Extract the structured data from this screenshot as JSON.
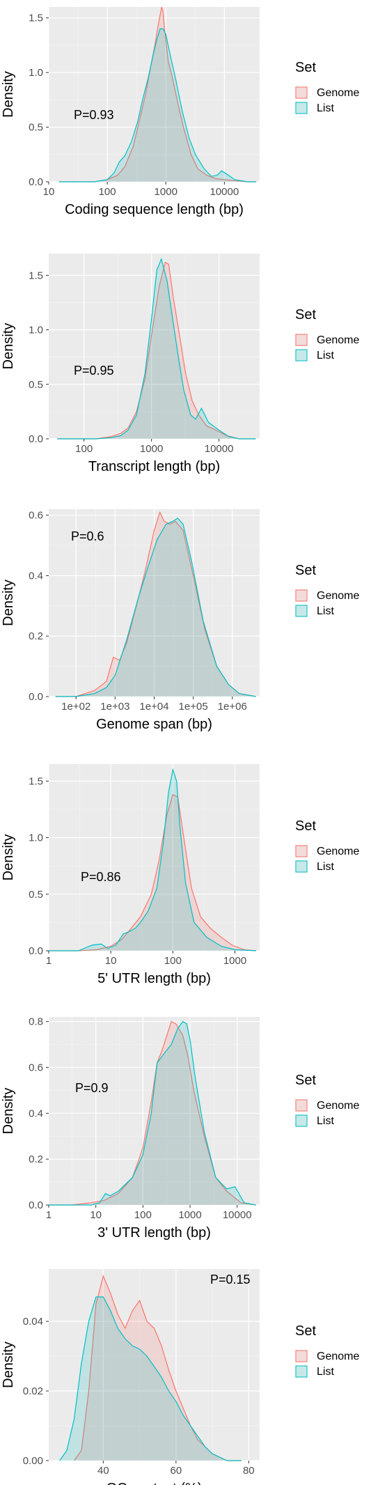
{
  "chart_data": [
    {
      "type": "area",
      "subtype": "density",
      "xlabel": "Coding sequence length (bp)",
      "ylabel": "Density",
      "x_scale": "log10",
      "xlim": [
        10,
        40000
      ],
      "ylim": [
        0,
        1.6
      ],
      "x_ticks": [
        10,
        100,
        1000,
        10000
      ],
      "x_tick_labels": [
        "10",
        "100",
        "1000",
        "10000"
      ],
      "y_ticks": [
        0,
        0.5,
        1,
        1.5
      ],
      "y_tick_labels": [
        "0.0",
        "0.5",
        "1.0",
        "1.5"
      ],
      "annotation": "P=0.93",
      "legend_title": "Set",
      "legend_position": "right",
      "grid": true,
      "series": [
        {
          "name": "Genome",
          "color": "#F8766D",
          "fill": "#F8766D",
          "x": [
            15,
            60,
            100,
            150,
            200,
            280,
            350,
            450,
            550,
            650,
            750,
            850,
            900,
            950,
            1000,
            1100,
            1300,
            1600,
            2000,
            2700,
            3500,
            5000,
            7000,
            10000,
            15000,
            25000,
            35000
          ],
          "y": [
            0,
            0.0,
            0.02,
            0.06,
            0.14,
            0.33,
            0.55,
            0.8,
            1.05,
            1.25,
            1.45,
            1.6,
            1.55,
            1.4,
            1.3,
            1.1,
            0.95,
            0.72,
            0.5,
            0.25,
            0.12,
            0.06,
            0.03,
            0.02,
            0.01,
            0.0,
            0
          ]
        },
        {
          "name": "List",
          "color": "#00BFC4",
          "fill": "#00BFC4",
          "x": [
            15,
            60,
            100,
            130,
            160,
            200,
            260,
            330,
            400,
            500,
            600,
            700,
            800,
            900,
            1000,
            1200,
            1500,
            1900,
            2500,
            3200,
            4500,
            6000,
            7500,
            9000,
            11000,
            15000,
            25000,
            35000
          ],
          "y": [
            0,
            0.0,
            0.02,
            0.08,
            0.18,
            0.24,
            0.37,
            0.55,
            0.75,
            0.95,
            1.15,
            1.3,
            1.4,
            1.4,
            1.35,
            1.15,
            0.92,
            0.65,
            0.4,
            0.25,
            0.12,
            0.05,
            0.06,
            0.1,
            0.07,
            0.02,
            0.0,
            0
          ]
        }
      ]
    },
    {
      "type": "area",
      "subtype": "density",
      "xlabel": "Transcript length (bp)",
      "ylabel": "Density",
      "x_scale": "log10",
      "xlim": [
        30,
        40000
      ],
      "ylim": [
        0,
        1.7
      ],
      "x_ticks": [
        100,
        1000,
        10000
      ],
      "x_tick_labels": [
        "100",
        "1000",
        "10000"
      ],
      "y_ticks": [
        0,
        0.5,
        1,
        1.5
      ],
      "y_tick_labels": [
        "0.0",
        "0.5",
        "1.0",
        "1.5"
      ],
      "annotation": "P=0.95",
      "legend_title": "Set",
      "legend_position": "right",
      "grid": true,
      "series": [
        {
          "name": "Genome",
          "color": "#F8766D",
          "fill": "#F8766D",
          "x": [
            40,
            150,
            250,
            350,
            450,
            600,
            800,
            1000,
            1300,
            1600,
            1800,
            2100,
            2600,
            3200,
            4000,
            5000,
            6500,
            9000,
            13000,
            20000,
            35000
          ],
          "y": [
            0,
            0.0,
            0.02,
            0.05,
            0.1,
            0.25,
            0.55,
            0.95,
            1.4,
            1.62,
            1.6,
            1.3,
            0.95,
            0.6,
            0.35,
            0.22,
            0.12,
            0.08,
            0.03,
            0.0,
            0
          ]
        },
        {
          "name": "List",
          "color": "#00BFC4",
          "fill": "#00BFC4",
          "x": [
            40,
            150,
            250,
            350,
            450,
            600,
            800,
            1000,
            1200,
            1400,
            1700,
            2000,
            2500,
            3000,
            3800,
            4500,
            5500,
            7000,
            10000,
            14000,
            20000,
            35000
          ],
          "y": [
            0,
            0.0,
            0.01,
            0.03,
            0.08,
            0.22,
            0.6,
            1.1,
            1.55,
            1.65,
            1.45,
            1.15,
            0.75,
            0.45,
            0.22,
            0.18,
            0.28,
            0.15,
            0.08,
            0.02,
            0.0,
            0
          ]
        }
      ]
    },
    {
      "type": "area",
      "subtype": "density",
      "xlabel": "Genome span (bp)",
      "ylabel": "Density",
      "x_scale": "log10",
      "xlim": [
        20,
        5000000
      ],
      "ylim": [
        0,
        0.62
      ],
      "x_ticks": [
        100,
        1000,
        10000,
        100000,
        1000000
      ],
      "x_tick_labels": [
        "1e+02",
        "1e+03",
        "1e+04",
        "1e+05",
        "1e+06"
      ],
      "y_ticks": [
        0,
        0.2,
        0.4,
        0.6
      ],
      "y_tick_labels": [
        "0.0",
        "0.2",
        "0.4",
        "0.6"
      ],
      "annotation": "P=0.6",
      "legend_title": "Set",
      "legend_position": "right",
      "grid": true,
      "series": [
        {
          "name": "Genome",
          "color": "#F8766D",
          "fill": "#F8766D",
          "x": [
            30,
            100,
            300,
            600,
            900,
            1300,
            2000,
            3500,
            6000,
            10000,
            14000,
            18000,
            25000,
            35000,
            55000,
            100000,
            200000,
            400000,
            800000,
            1500000,
            4000000
          ],
          "y": [
            0,
            0.0,
            0.02,
            0.05,
            0.13,
            0.12,
            0.18,
            0.3,
            0.42,
            0.55,
            0.61,
            0.58,
            0.57,
            0.58,
            0.55,
            0.4,
            0.22,
            0.1,
            0.04,
            0.01,
            0
          ]
        },
        {
          "name": "List",
          "color": "#00BFC4",
          "fill": "#00BFC4",
          "x": [
            30,
            100,
            300,
            600,
            1000,
            2000,
            4000,
            7000,
            12000,
            20000,
            30000,
            40000,
            55000,
            90000,
            180000,
            400000,
            800000,
            1500000,
            4000000
          ],
          "y": [
            0,
            0.0,
            0.01,
            0.03,
            0.07,
            0.19,
            0.33,
            0.43,
            0.52,
            0.57,
            0.58,
            0.59,
            0.57,
            0.45,
            0.25,
            0.1,
            0.04,
            0.01,
            0
          ]
        }
      ]
    },
    {
      "type": "area",
      "subtype": "density",
      "xlabel": "5' UTR length (bp)",
      "ylabel": "Density",
      "x_scale": "log10",
      "xlim": [
        1,
        2500
      ],
      "ylim": [
        0,
        1.65
      ],
      "x_ticks": [
        1,
        10,
        100,
        1000
      ],
      "x_tick_labels": [
        "1",
        "10",
        "100",
        "1000"
      ],
      "y_ticks": [
        0,
        0.5,
        1,
        1.5
      ],
      "y_tick_labels": [
        "0.0",
        "0.5",
        "1.0",
        "1.5"
      ],
      "annotation": "P=0.86",
      "legend_title": "Set",
      "legend_position": "right",
      "grid": true,
      "series": [
        {
          "name": "Genome",
          "color": "#F8766D",
          "fill": "#F8766D",
          "x": [
            1,
            3,
            6,
            10,
            15,
            20,
            30,
            45,
            60,
            80,
            100,
            120,
            150,
            200,
            280,
            400,
            600,
            900,
            1400,
            2200
          ],
          "y": [
            0,
            0.0,
            0.01,
            0.04,
            0.1,
            0.18,
            0.3,
            0.5,
            0.8,
            1.2,
            1.38,
            1.36,
            1.0,
            0.55,
            0.3,
            0.2,
            0.12,
            0.05,
            0.01,
            0
          ]
        },
        {
          "name": "List",
          "color": "#00BFC4",
          "fill": "#00BFC4",
          "x": [
            1,
            3,
            5,
            7,
            9,
            12,
            16,
            20,
            25,
            30,
            40,
            55,
            70,
            85,
            100,
            115,
            130,
            160,
            220,
            350,
            600,
            1000,
            2200
          ],
          "y": [
            0,
            0.0,
            0.05,
            0.06,
            0.02,
            0.05,
            0.15,
            0.17,
            0.2,
            0.25,
            0.35,
            0.55,
            0.95,
            1.4,
            1.6,
            1.5,
            1.1,
            0.6,
            0.25,
            0.12,
            0.04,
            0.01,
            0
          ]
        }
      ]
    },
    {
      "type": "area",
      "subtype": "density",
      "xlabel": "3' UTR length (bp)",
      "ylabel": "Density",
      "x_scale": "log10",
      "xlim": [
        1,
        30000
      ],
      "ylim": [
        0,
        0.82
      ],
      "x_ticks": [
        1,
        10,
        100,
        1000,
        10000
      ],
      "x_tick_labels": [
        "1",
        "10",
        "100",
        "1000",
        "10000"
      ],
      "y_ticks": [
        0,
        0.2,
        0.4,
        0.6,
        0.8
      ],
      "y_tick_labels": [
        "0.0",
        "0.2",
        "0.4",
        "0.6",
        "0.8"
      ],
      "annotation": "P=0.9",
      "legend_title": "Set",
      "legend_position": "right",
      "grid": true,
      "series": [
        {
          "name": "Genome",
          "color": "#F8766D",
          "fill": "#F8766D",
          "x": [
            1,
            3,
            8,
            15,
            30,
            60,
            100,
            150,
            200,
            250,
            300,
            400,
            500,
            700,
            900,
            1200,
            2000,
            3500,
            6000,
            12000,
            25000
          ],
          "y": [
            0,
            0.0,
            0.01,
            0.02,
            0.05,
            0.12,
            0.25,
            0.45,
            0.62,
            0.67,
            0.72,
            0.8,
            0.79,
            0.74,
            0.65,
            0.5,
            0.3,
            0.12,
            0.06,
            0.01,
            0
          ]
        },
        {
          "name": "List",
          "color": "#00BFC4",
          "fill": "#00BFC4",
          "x": [
            1,
            3,
            8,
            12,
            16,
            20,
            30,
            60,
            100,
            150,
            200,
            280,
            400,
            550,
            700,
            850,
            1000,
            1300,
            2000,
            3500,
            6000,
            9000,
            14000,
            25000
          ],
          "y": [
            0,
            0.0,
            0.0,
            0.01,
            0.05,
            0.04,
            0.06,
            0.12,
            0.22,
            0.4,
            0.62,
            0.66,
            0.7,
            0.77,
            0.8,
            0.79,
            0.72,
            0.55,
            0.32,
            0.12,
            0.07,
            0.08,
            0.01,
            0
          ]
        }
      ]
    },
    {
      "type": "area",
      "subtype": "density",
      "xlabel": "GC content (%)",
      "ylabel": "Density",
      "x_scale": "linear",
      "xlim": [
        25,
        83
      ],
      "ylim": [
        0,
        0.055
      ],
      "x_ticks": [
        40,
        60,
        80
      ],
      "x_tick_labels": [
        "40",
        "60",
        "80"
      ],
      "y_ticks": [
        0,
        0.02,
        0.04
      ],
      "y_tick_labels": [
        "0.00",
        "0.02",
        "0.04"
      ],
      "annotation": "P=0.15",
      "legend_title": "Set",
      "legend_position": "right",
      "grid": true,
      "series": [
        {
          "name": "Genome",
          "color": "#F8766D",
          "fill": "#F8766D",
          "x": [
            32,
            34,
            36,
            38,
            40,
            42,
            44,
            46,
            48,
            50,
            52,
            54,
            56,
            58,
            60,
            62,
            64,
            66,
            68,
            70,
            72,
            74,
            78
          ],
          "y": [
            0,
            0.003,
            0.02,
            0.045,
            0.053,
            0.048,
            0.042,
            0.038,
            0.043,
            0.046,
            0.04,
            0.038,
            0.033,
            0.026,
            0.02,
            0.015,
            0.01,
            0.006,
            0.004,
            0.002,
            0.001,
            0.0,
            0
          ]
        },
        {
          "name": "List",
          "color": "#00BFC4",
          "fill": "#00BFC4",
          "x": [
            28,
            30,
            32,
            34,
            36,
            38,
            40,
            42,
            44,
            46,
            48,
            50,
            52,
            54,
            56,
            58,
            60,
            62,
            64,
            66,
            68,
            70,
            72,
            74,
            78
          ],
          "y": [
            0,
            0.003,
            0.012,
            0.028,
            0.04,
            0.047,
            0.047,
            0.043,
            0.038,
            0.035,
            0.033,
            0.032,
            0.03,
            0.027,
            0.024,
            0.02,
            0.017,
            0.013,
            0.01,
            0.007,
            0.004,
            0.002,
            0.001,
            0.0,
            0
          ]
        }
      ]
    }
  ]
}
